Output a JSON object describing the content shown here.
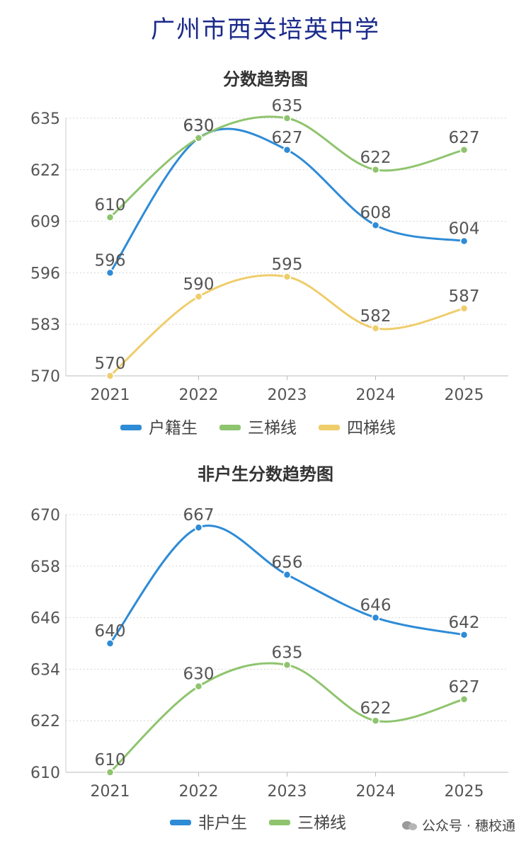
{
  "page_title": "广州市西关培英中学",
  "watermark": {
    "sep": "公众号 · 穗校通",
    "icon": "wechat-icon"
  },
  "chart_data": [
    {
      "type": "line",
      "title": "分数趋势图",
      "categories": [
        "2021",
        "2022",
        "2023",
        "2024",
        "2025"
      ],
      "yticks": [
        570,
        583,
        596,
        609,
        622,
        635
      ],
      "ylim": [
        570,
        635
      ],
      "grid": true,
      "legend": "bottom",
      "series": [
        {
          "name": "户籍生",
          "color": "#2e8bd6",
          "values": [
            596,
            630,
            627,
            608,
            604
          ]
        },
        {
          "name": "三梯线",
          "color": "#8fc46e",
          "values": [
            610,
            630,
            635,
            622,
            627
          ]
        },
        {
          "name": "四梯线",
          "color": "#efcd6b",
          "values": [
            570,
            590,
            595,
            582,
            587
          ]
        }
      ]
    },
    {
      "type": "line",
      "title": "非户生分数趋势图",
      "categories": [
        "2021",
        "2022",
        "2023",
        "2024",
        "2025"
      ],
      "yticks": [
        610,
        622,
        634,
        646,
        658,
        670
      ],
      "ylim": [
        610,
        670
      ],
      "grid": true,
      "legend": "bottom",
      "series": [
        {
          "name": "非户生",
          "color": "#2e8bd6",
          "values": [
            640,
            667,
            656,
            646,
            642
          ]
        },
        {
          "name": "三梯线",
          "color": "#8fc46e",
          "values": [
            610,
            630,
            635,
            622,
            627
          ]
        }
      ]
    }
  ]
}
